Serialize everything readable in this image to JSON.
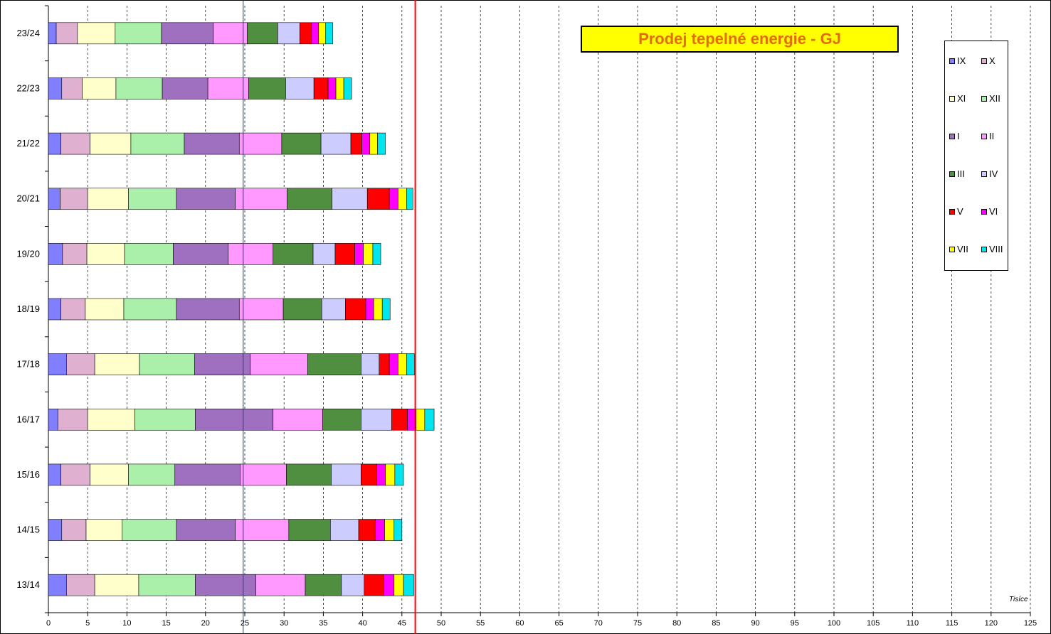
{
  "chart_data": {
    "type": "bar",
    "orientation": "horizontal",
    "stacked": true,
    "title": "Prodej tepelné energie - GJ",
    "unit_label": "Tisíce",
    "categories": [
      "23/24",
      "22/23",
      "21/22",
      "20/21",
      "19/20",
      "18/19",
      "17/18",
      "16/17",
      "15/16",
      "14/15",
      "13/14"
    ],
    "xlim": [
      0,
      125
    ],
    "xticks": [
      0,
      5,
      10,
      15,
      20,
      25,
      30,
      35,
      40,
      45,
      50,
      55,
      60,
      65,
      70,
      75,
      80,
      85,
      90,
      95,
      100,
      105,
      110,
      115,
      120,
      125
    ],
    "series": [
      {
        "name": "IX",
        "color": "#7f7fff",
        "values": [
          1.0,
          1.7,
          1.6,
          1.5,
          1.8,
          1.6,
          2.3,
          1.2,
          1.6,
          1.7,
          2.3
        ]
      },
      {
        "name": "X",
        "color": "#e0b0d0",
        "values": [
          2.7,
          2.6,
          3.7,
          3.5,
          3.1,
          3.1,
          3.6,
          3.8,
          3.7,
          3.1,
          3.6
        ]
      },
      {
        "name": "XI",
        "color": "#ffffcc",
        "values": [
          4.8,
          4.3,
          5.2,
          5.2,
          4.8,
          4.9,
          5.7,
          6.0,
          4.9,
          4.6,
          5.6
        ]
      },
      {
        "name": "XII",
        "color": "#aaf0aa",
        "values": [
          5.9,
          5.9,
          6.8,
          6.1,
          6.2,
          6.7,
          7.0,
          7.7,
          5.9,
          6.9,
          7.2
        ]
      },
      {
        "name": "I",
        "color": "#a070c0",
        "values": [
          6.6,
          5.8,
          7.0,
          7.5,
          7.0,
          8.0,
          7.1,
          9.9,
          8.3,
          7.5,
          7.7
        ]
      },
      {
        "name": "II",
        "color": "#ff99ff",
        "values": [
          4.3,
          5.2,
          5.4,
          6.6,
          5.7,
          5.6,
          7.3,
          6.3,
          5.9,
          6.8,
          6.3
        ]
      },
      {
        "name": "III",
        "color": "#4f8f3f",
        "values": [
          3.9,
          4.7,
          5.0,
          5.7,
          5.1,
          4.9,
          6.8,
          4.9,
          5.7,
          5.3,
          4.6
        ]
      },
      {
        "name": "IV",
        "color": "#ccccff",
        "values": [
          2.8,
          3.6,
          3.8,
          4.5,
          2.8,
          3.0,
          2.3,
          3.9,
          3.8,
          3.6,
          2.9
        ]
      },
      {
        "name": "V",
        "color": "#ff0000",
        "values": [
          1.5,
          1.8,
          1.4,
          2.8,
          2.5,
          2.6,
          1.3,
          2.0,
          2.0,
          2.1,
          2.5
        ]
      },
      {
        "name": "VI",
        "color": "#ff00ff",
        "values": [
          0.9,
          1.0,
          1.0,
          1.1,
          1.1,
          1.0,
          1.1,
          1.1,
          1.1,
          1.2,
          1.3
        ]
      },
      {
        "name": "VII",
        "color": "#ffff00",
        "values": [
          0.9,
          1.0,
          1.0,
          1.1,
          1.2,
          1.1,
          1.1,
          1.1,
          1.2,
          1.2,
          1.2
        ]
      },
      {
        "name": "VIII",
        "color": "#00e5ee",
        "values": [
          0.9,
          1.0,
          1.0,
          0.8,
          1.0,
          1.0,
          1.0,
          1.2,
          1.1,
          1.0,
          1.3
        ]
      }
    ],
    "reference_lines": [
      {
        "axis": "x",
        "value": 46.7,
        "color": "#ff0000"
      },
      {
        "axis": "x",
        "value": 24.8,
        "color": "#1f3f7f"
      }
    ],
    "grid": "vertical-dashed",
    "legend_position": "top-right"
  }
}
